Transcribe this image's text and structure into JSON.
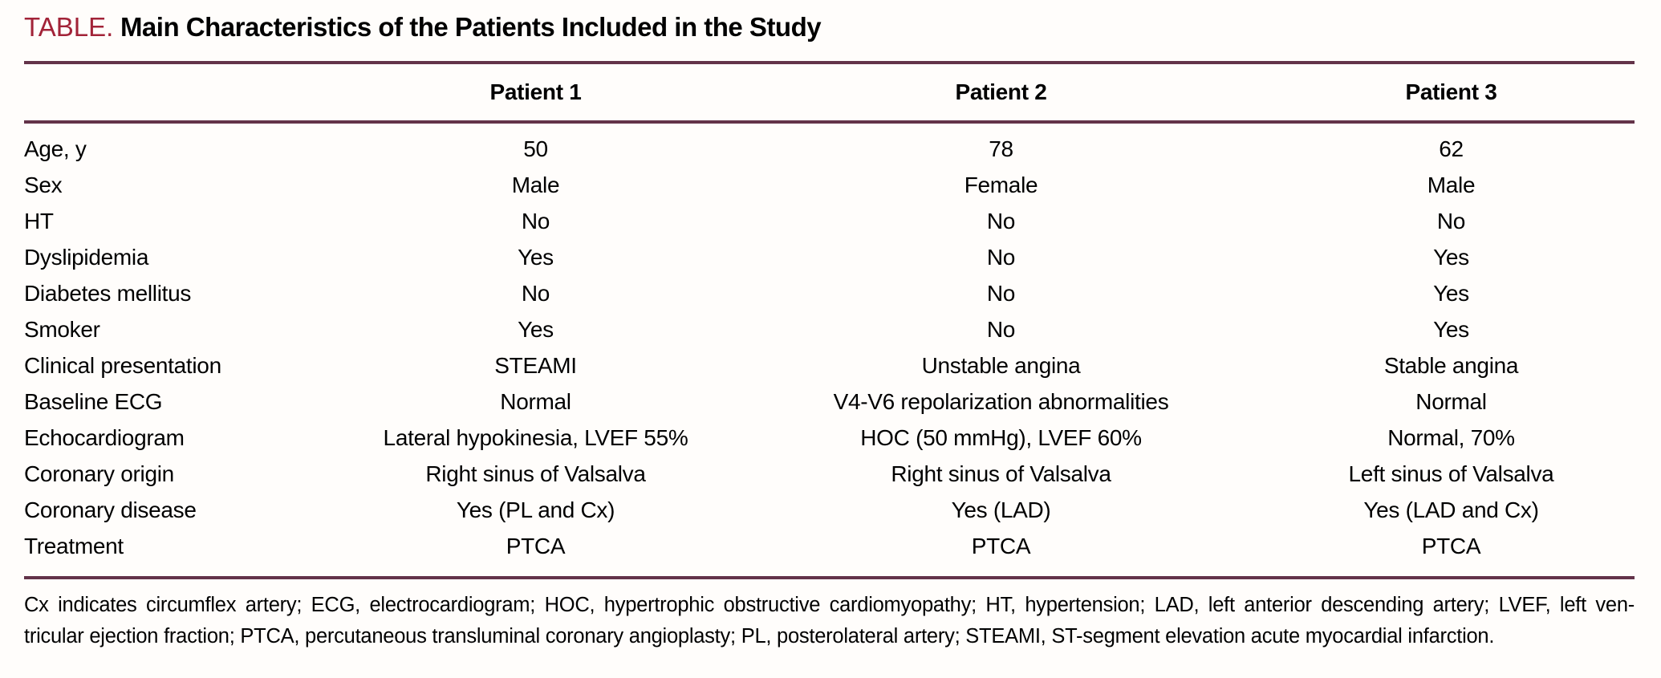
{
  "title": {
    "label": "TABLE.",
    "text": "Main Characteristics of the Patients Included in the Study"
  },
  "table": {
    "columns": [
      "",
      "Patient 1",
      "Patient 2",
      "Patient 3"
    ],
    "rows": [
      {
        "label": "Age, y",
        "values": [
          "50",
          "78",
          "62"
        ]
      },
      {
        "label": "Sex",
        "values": [
          "Male",
          "Female",
          "Male"
        ]
      },
      {
        "label": "HT",
        "values": [
          "No",
          "No",
          "No"
        ]
      },
      {
        "label": "Dyslipidemia",
        "values": [
          "Yes",
          "No",
          "Yes"
        ]
      },
      {
        "label": "Diabetes mellitus",
        "values": [
          "No",
          "No",
          "Yes"
        ]
      },
      {
        "label": "Smoker",
        "values": [
          "Yes",
          "No",
          "Yes"
        ]
      },
      {
        "label": "Clinical presentation",
        "values": [
          "STEAMI",
          "Unstable angina",
          "Stable angina"
        ]
      },
      {
        "label": "Baseline ECG",
        "values": [
          "Normal",
          "V4-V6 repolarization abnormalities",
          "Normal"
        ]
      },
      {
        "label": "Echocardiogram",
        "values": [
          "Lateral hypokinesia, LVEF 55%",
          "HOC (50 mmHg), LVEF 60%",
          "Normal, 70%"
        ]
      },
      {
        "label": "Coronary origin",
        "values": [
          "Right sinus of Valsalva",
          "Right sinus of Valsalva",
          "Left sinus of Valsalva"
        ]
      },
      {
        "label": "Coronary disease",
        "values": [
          "Yes (PL and Cx)",
          "Yes (LAD)",
          "Yes (LAD and Cx)"
        ]
      },
      {
        "label": "Treatment",
        "values": [
          "PTCA",
          "PTCA",
          "PTCA"
        ]
      }
    ]
  },
  "footnote": {
    "line1": "Cx indicates circumflex artery; ECG, electrocardiogram; HOC, hypertrophic obstructive cardiomyopathy; HT, hypertension; LAD, left anterior descending artery; LVEF, left ven-",
    "line2": "tricular ejection fraction; PTCA, percutaneous transluminal coronary angioplasty; PL, posterolateral artery; STEAMI, ST-segment elevation acute myocardial infarction."
  },
  "colors": {
    "accent": "#a22338",
    "rule": "#633349",
    "background": "#fffdfb"
  }
}
